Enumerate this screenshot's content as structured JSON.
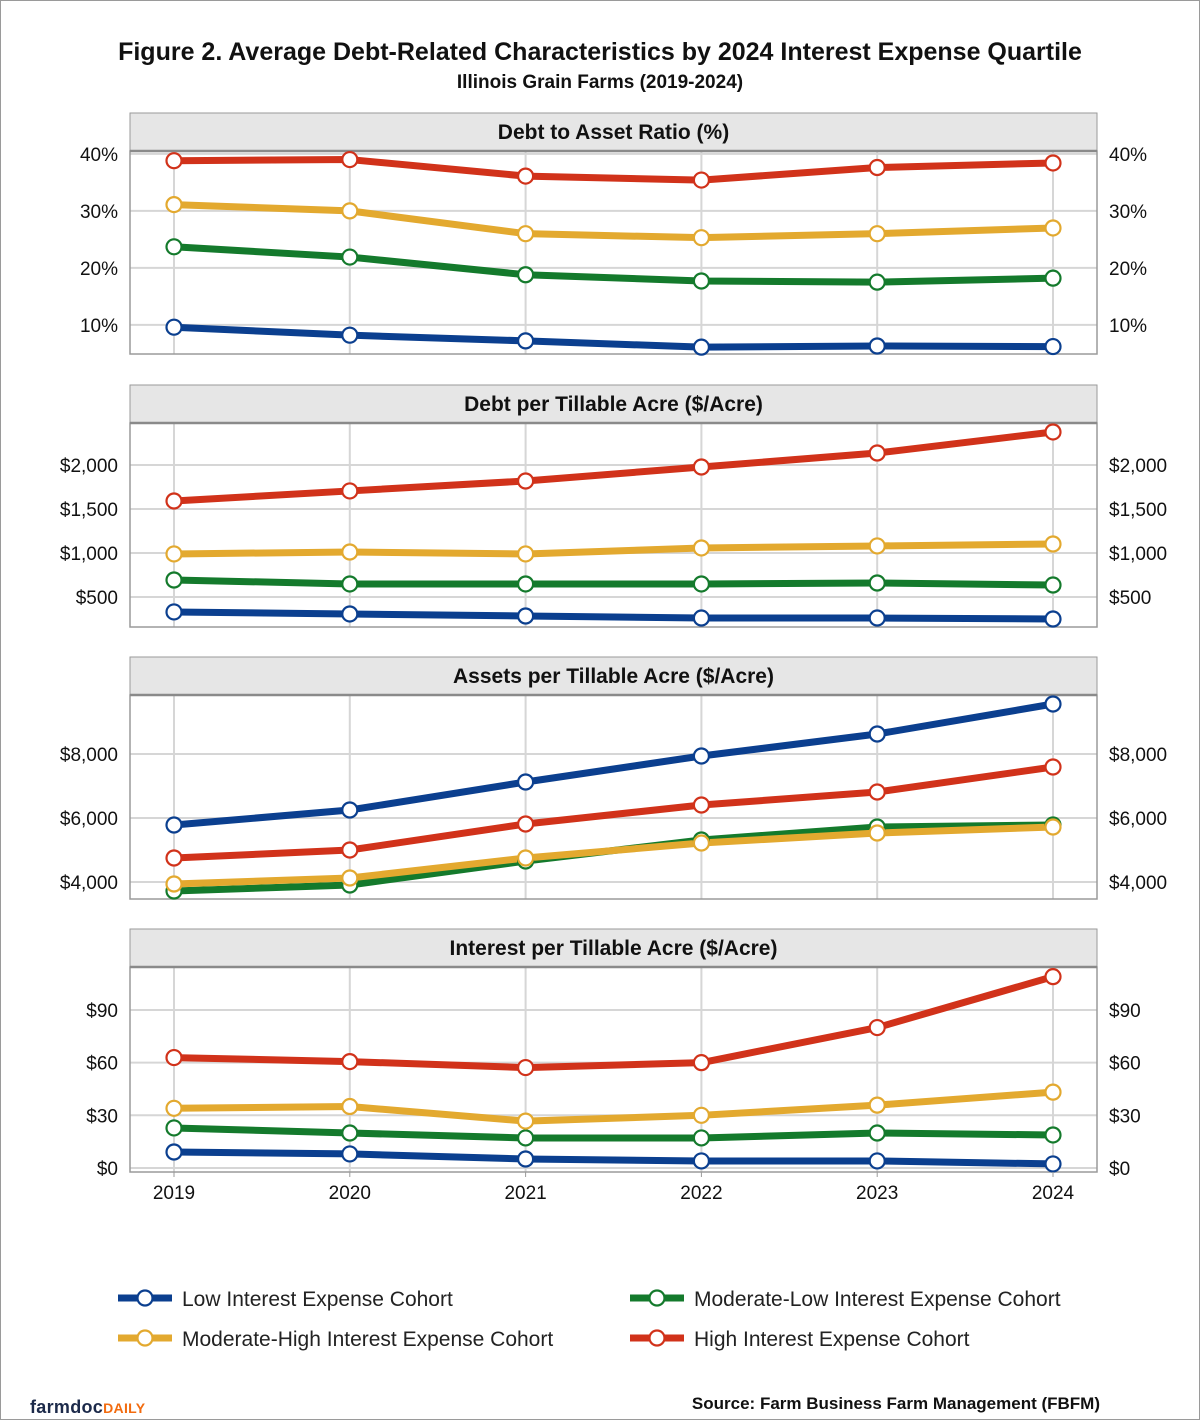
{
  "title": "Figure 2. Average Debt-Related Characteristics by 2024 Interest Expense Quartile",
  "subtitle": "Illinois Grain Farms (2019-2024)",
  "source": "Source: Farm Business Farm Management (FBFM)",
  "logo": {
    "main": "farmdoc",
    "accent": "DAILY"
  },
  "colors": {
    "Low": "#0b3f8f",
    "Moderate-Low": "#147a2c",
    "Moderate-High": "#e3a92f",
    "High": "#d1321a"
  },
  "chart_data": {
    "type": "line",
    "x": [
      2019,
      2020,
      2021,
      2022,
      2023,
      2024
    ],
    "x_tick_labels": [
      "2019",
      "2020",
      "2021",
      "2022",
      "2023",
      "2024"
    ],
    "legend": {
      "placement": "bottom",
      "entries": [
        "Low Interest Expense Cohort",
        "Moderate-Low Interest Expense Cohort",
        "Moderate-High Interest Expense Cohort",
        "High Interest Expense Cohort"
      ]
    },
    "grid": true,
    "panels": [
      {
        "title": "Debt to Asset Ratio (%)",
        "ylim": [
          4.9,
          40.5
        ],
        "yticks": [
          10,
          20,
          30,
          40
        ],
        "ytick_labels": [
          "10%",
          "20%",
          "30%",
          "40%"
        ],
        "series": [
          {
            "name": "Low Interest Expense Cohort",
            "key": "Low",
            "values": [
              9.6,
              8.2,
              7.2,
              6.1,
              6.3,
              6.2
            ]
          },
          {
            "name": "Moderate-Low Interest Expense Cohort",
            "key": "Moderate-Low",
            "values": [
              23.7,
              21.9,
              18.8,
              17.7,
              17.5,
              18.2
            ]
          },
          {
            "name": "Moderate-High Interest Expense Cohort",
            "key": "Moderate-High",
            "values": [
              31.1,
              30.0,
              26.0,
              25.3,
              26.0,
              27.0
            ]
          },
          {
            "name": "High Interest Expense Cohort",
            "key": "High",
            "values": [
              38.8,
              39.0,
              36.1,
              35.4,
              37.6,
              38.4
            ]
          }
        ]
      },
      {
        "title": "Debt per Tillable Acre ($/Acre)",
        "ylim": [
          159,
          2477
        ],
        "yticks": [
          500,
          1000,
          1500,
          2000
        ],
        "ytick_labels": [
          "$500",
          "$1,000",
          "$1,500",
          "$2,000"
        ],
        "series": [
          {
            "name": "Low Interest Expense Cohort",
            "key": "Low",
            "values": [
              330,
              307,
              284,
              261,
              261,
              250
            ]
          },
          {
            "name": "Moderate-Low Interest Expense Cohort",
            "key": "Moderate-Low",
            "values": [
              693,
              648,
              648,
              648,
              659,
              636
            ]
          },
          {
            "name": "Moderate-High Interest Expense Cohort",
            "key": "Moderate-High",
            "values": [
              989,
              1011,
              989,
              1057,
              1080,
              1102
            ]
          },
          {
            "name": "High Interest Expense Cohort",
            "key": "High",
            "values": [
              1591,
              1705,
              1818,
              1977,
              2136,
              2375
            ]
          }
        ]
      },
      {
        "title": "Assets per Tillable Acre ($/Acre)",
        "ylim": [
          3469,
          9844
        ],
        "yticks": [
          4000,
          6000,
          8000
        ],
        "ytick_labels": [
          "$4,000",
          "$6,000",
          "$8,000"
        ],
        "series": [
          {
            "name": "Low Interest Expense Cohort",
            "key": "Low",
            "values": [
              5781,
              6250,
              7125,
              7938,
              8625,
              9563
            ]
          },
          {
            "name": "Moderate-Low Interest Expense Cohort",
            "key": "Moderate-Low",
            "values": [
              3719,
              3906,
              4656,
              5313,
              5719,
              5781
            ]
          },
          {
            "name": "Moderate-High Interest Expense Cohort",
            "key": "Moderate-High",
            "values": [
              3938,
              4125,
              4750,
              5219,
              5531,
              5719
            ]
          },
          {
            "name": "High Interest Expense Cohort",
            "key": "High",
            "values": [
              4750,
              5000,
              5813,
              6406,
              6813,
              7594
            ]
          }
        ]
      },
      {
        "title": "Interest per Tillable Acre ($/Acre)",
        "ylim": [
          -2.3,
          114.5
        ],
        "yticks": [
          0,
          30,
          60,
          90
        ],
        "ytick_labels": [
          "$0",
          "$30",
          "$60",
          "$90"
        ],
        "series": [
          {
            "name": "Low Interest Expense Cohort",
            "key": "Low",
            "values": [
              9.1,
              8.0,
              5.1,
              4.0,
              4.0,
              2.3
            ]
          },
          {
            "name": "Moderate-Low Interest Expense Cohort",
            "key": "Moderate-Low",
            "values": [
              22.8,
              19.9,
              17.1,
              17.1,
              19.9,
              18.8
            ]
          },
          {
            "name": "Moderate-High Interest Expense Cohort",
            "key": "Moderate-High",
            "values": [
              34.0,
              35.0,
              26.7,
              30.0,
              35.8,
              43.2
            ]
          },
          {
            "name": "High Interest Expense Cohort",
            "key": "High",
            "values": [
              62.9,
              60.6,
              57.2,
              60.0,
              80.0,
              109.0
            ]
          }
        ]
      }
    ]
  }
}
